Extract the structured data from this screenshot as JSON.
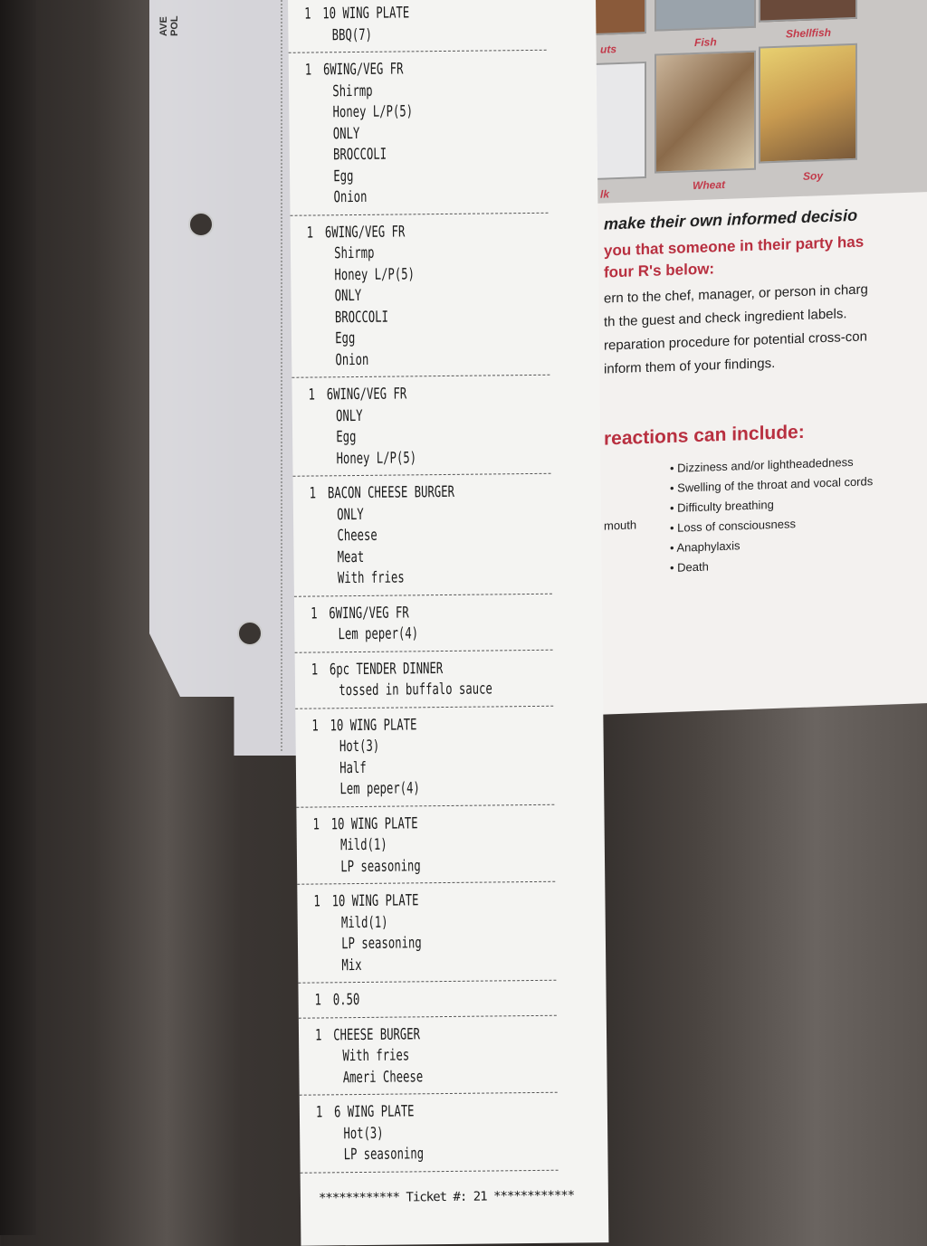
{
  "sleeve_label": "AVE\nPOL",
  "poster": {
    "allergen_labels": [
      "uts",
      "Fish",
      "Shellfish",
      "lk",
      "Wheat",
      "Soy"
    ],
    "lines": [
      "make their own informed decisio",
      "you that someone in their party has",
      "four R's below:",
      "ern to the chef, manager, or person in charg",
      "th the guest and check ingredient labels.",
      "reparation procedure for potential cross-con",
      "inform them of your findings."
    ],
    "reactions_heading": "reactions can include:",
    "left_symptom": "mouth",
    "symptoms": [
      "Dizziness and/or lightheadedness",
      "Swelling of the throat and vocal cords",
      "Difficulty breathing",
      "Loss of consciousness",
      "Anaphylaxis",
      "Death"
    ]
  },
  "receipt": {
    "items": [
      {
        "qty": "1",
        "name": "10 WING PLATE",
        "mods": [
          "BBQ(7)"
        ]
      },
      {
        "qty": "1",
        "name": "6WING/VEG FR",
        "mods": [
          "Shirmp",
          "Honey L/P(5)",
          "ONLY",
          "BROCCOLI",
          "Egg",
          "Onion"
        ]
      },
      {
        "qty": "1",
        "name": "6WING/VEG FR",
        "mods": [
          "Shirmp",
          "Honey L/P(5)",
          "ONLY",
          "BROCCOLI",
          "Egg",
          "Onion"
        ]
      },
      {
        "qty": "1",
        "name": "6WING/VEG FR",
        "mods": [
          "ONLY",
          "Egg",
          "Honey L/P(5)"
        ]
      },
      {
        "qty": "1",
        "name": "BACON CHEESE BURGER",
        "mods": [
          "ONLY",
          "Cheese",
          "Meat",
          "With fries"
        ]
      },
      {
        "qty": "1",
        "name": "6WING/VEG FR",
        "mods": [
          "Lem peper(4)"
        ]
      },
      {
        "qty": "1",
        "name": "6pc TENDER DINNER",
        "mods": [
          "tossed in buffalo sauce"
        ]
      },
      {
        "qty": "1",
        "name": "10 WING PLATE",
        "mods": [
          "Hot(3)",
          "Half",
          "Lem peper(4)"
        ]
      },
      {
        "qty": "1",
        "name": "10 WING PLATE",
        "mods": [
          "Mild(1)",
          "LP seasoning"
        ]
      },
      {
        "qty": "1",
        "name": "10 WING PLATE",
        "mods": [
          "Mild(1)",
          "LP seasoning",
          "Mix"
        ]
      },
      {
        "qty": "1",
        "name": "0.50",
        "mods": []
      },
      {
        "qty": "1",
        "name": "CHEESE BURGER",
        "mods": [
          "With fries",
          "Ameri Cheese"
        ]
      },
      {
        "qty": "1",
        "name": "6 WING PLATE",
        "mods": [
          "Hot(3)",
          "LP seasoning"
        ]
      }
    ],
    "footer": "************ Ticket #: 21 ************"
  }
}
